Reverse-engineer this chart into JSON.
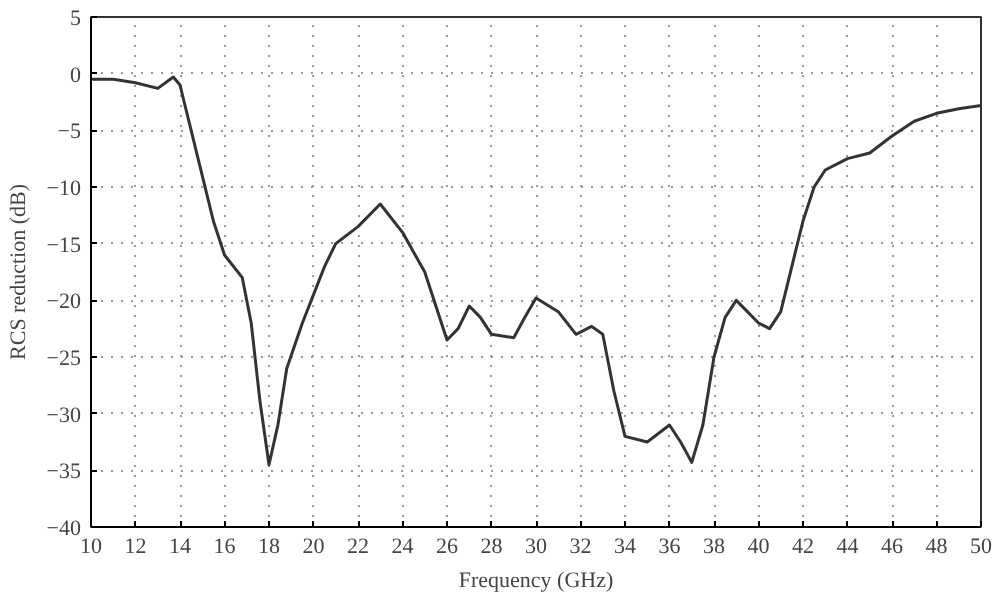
{
  "chart_data": {
    "type": "line",
    "xlabel": "Frequency (GHz)",
    "ylabel": "RCS reduction (dB)",
    "x": [
      10,
      11,
      12,
      13,
      13.7,
      14,
      14.5,
      15,
      15.5,
      16,
      16.8,
      17.2,
      17.6,
      18,
      18.4,
      18.8,
      19.5,
      20.5,
      21,
      22,
      23,
      24,
      25,
      25.5,
      26,
      26.5,
      27,
      27.5,
      28,
      29,
      29.5,
      30,
      31,
      31.8,
      32.5,
      33,
      33.5,
      34,
      35,
      36,
      36.5,
      37,
      37.5,
      38,
      38.5,
      39,
      39.5,
      40,
      40.5,
      41,
      41.5,
      42,
      42.5,
      43,
      44,
      45,
      46,
      47,
      48,
      49,
      50
    ],
    "series": [
      {
        "color": "#333333",
        "values": [
          -0.5,
          -0.5,
          -0.8,
          -1.3,
          -0.3,
          -1,
          -5,
          -9,
          -13,
          -16,
          -18,
          -22,
          -29,
          -34.5,
          -31,
          -26,
          -22,
          -17,
          -15,
          -13.5,
          -11.5,
          -14,
          -17.5,
          -20.5,
          -23.5,
          -22.5,
          -20.5,
          -21.5,
          -23,
          -23.3,
          -21.5,
          -19.8,
          -21,
          -23,
          -22.3,
          -23,
          -28,
          -32,
          -32.5,
          -31,
          -32.5,
          -34.3,
          -31,
          -25,
          -21.5,
          -20,
          -21,
          -22,
          -22.5,
          -21,
          -17,
          -13,
          -10,
          -8.5,
          -7.5,
          -7,
          -5.5,
          -4.2,
          -3.5,
          -3.1,
          -2.8
        ]
      }
    ],
    "xlim": [
      10,
      50
    ],
    "ylim": [
      -40,
      5
    ],
    "xticks": [
      10,
      12,
      14,
      16,
      18,
      20,
      22,
      24,
      26,
      28,
      30,
      32,
      34,
      36,
      38,
      40,
      42,
      44,
      46,
      48,
      50
    ],
    "yticks": [
      -40,
      -35,
      -30,
      -25,
      -20,
      -15,
      -10,
      -5,
      0,
      5
    ],
    "grid": true,
    "marker": "none",
    "line_style": "solid"
  }
}
